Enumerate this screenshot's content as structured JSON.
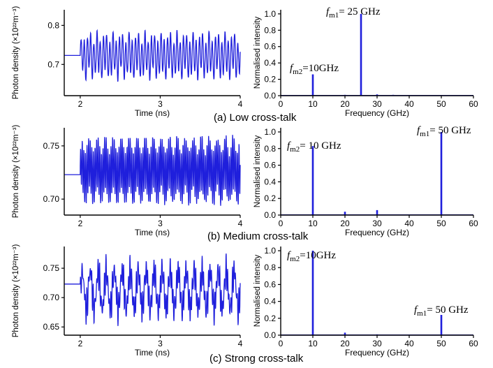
{
  "colors": {
    "trace": "#1f1fdc",
    "axis": "#000000"
  },
  "captions": [
    "(a) Low cross-talk",
    "(b) Medium cross-talk",
    "(c) Strong cross-talk"
  ],
  "chart_data": [
    {
      "type": "line",
      "panel": "a-time",
      "xlabel": "Time (ns)",
      "ylabel": "Photon density (×10²²m⁻³)",
      "xlim": [
        1.8,
        4.0
      ],
      "ylim": [
        0.62,
        0.84
      ],
      "xticks": [
        2,
        3,
        4
      ],
      "xtick_labels": [
        "2",
        "3",
        "4"
      ],
      "yticks": [
        0.7,
        0.8
      ],
      "ytick_labels": [
        "0.7",
        "0.8"
      ],
      "series": [
        {
          "baseline": 0.723,
          "start_time": 2.0,
          "end_time": 4.0,
          "min": 0.655,
          "max": 0.79,
          "tones_GHz": [
            25,
            10
          ]
        }
      ]
    },
    {
      "type": "bar",
      "panel": "a-spectrum",
      "xlabel": "Frequency (GHz)",
      "ylabel": "Normalised intensity",
      "xlim": [
        0,
        60
      ],
      "ylim": [
        0,
        1.05
      ],
      "xticks": [
        0,
        10,
        20,
        30,
        40,
        50,
        60
      ],
      "xtick_labels": [
        "0",
        "10",
        "20",
        "30",
        "40",
        "50",
        "60"
      ],
      "yticks": [
        0,
        0.2,
        0.4,
        0.6,
        0.8,
        1.0
      ],
      "ytick_labels": [
        "0.0",
        "0.2",
        "0.4",
        "0.6",
        "0.8",
        "1.0"
      ],
      "peaks": [
        {
          "x": 10,
          "y": 0.26
        },
        {
          "x": 20,
          "y": 0.01
        },
        {
          "x": 25,
          "y": 1.0
        },
        {
          "x": 30,
          "y": 0.015
        },
        {
          "x": 35,
          "y": 0.01
        },
        {
          "x": 50,
          "y": 0.005
        }
      ],
      "annotations": [
        {
          "f": "f",
          "sub": "m2",
          "rest": "=10GHz"
        },
        {
          "f": "f",
          "sub": "m1",
          "rest": "= 25 GHz"
        }
      ]
    },
    {
      "type": "line",
      "panel": "b-time",
      "xlabel": "Time (ns)",
      "ylabel": "Photon density (×10²²m⁻³)",
      "xlim": [
        1.8,
        4.0
      ],
      "ylim": [
        0.685,
        0.767
      ],
      "xticks": [
        2,
        3,
        4
      ],
      "xtick_labels": [
        "2",
        "3",
        "4"
      ],
      "yticks": [
        0.7,
        0.75
      ],
      "ytick_labels": [
        "0.70",
        "0.75"
      ],
      "series": [
        {
          "baseline": 0.723,
          "start_time": 2.0,
          "end_time": 4.0,
          "min": 0.692,
          "max": 0.762,
          "tones_GHz": [
            50,
            10
          ]
        }
      ]
    },
    {
      "type": "bar",
      "panel": "b-spectrum",
      "xlabel": "Frequency (GHz)",
      "ylabel": "Normalised intensity",
      "xlim": [
        0,
        60
      ],
      "ylim": [
        0,
        1.05
      ],
      "xticks": [
        0,
        10,
        20,
        30,
        40,
        50,
        60
      ],
      "xtick_labels": [
        "0",
        "10",
        "20",
        "30",
        "40",
        "50",
        "60"
      ],
      "yticks": [
        0,
        0.2,
        0.4,
        0.6,
        0.8,
        1.0
      ],
      "ytick_labels": [
        "0.0",
        "0.2",
        "0.4",
        "0.6",
        "0.8",
        "1.0"
      ],
      "peaks": [
        {
          "x": 10,
          "y": 0.83
        },
        {
          "x": 20,
          "y": 0.04
        },
        {
          "x": 30,
          "y": 0.06
        },
        {
          "x": 50,
          "y": 1.0
        }
      ],
      "annotations": [
        {
          "f": "f",
          "sub": "m2",
          "rest": "= 10 GHz"
        },
        {
          "f": "f",
          "sub": "m1",
          "rest": "= 50 GHz"
        }
      ]
    },
    {
      "type": "line",
      "panel": "c-time",
      "xlabel": "Time (ns)",
      "ylabel": "Photon density (×10²²m⁻³)",
      "xlim": [
        1.8,
        4.0
      ],
      "ylim": [
        0.636,
        0.787
      ],
      "xticks": [
        2,
        3,
        4
      ],
      "xtick_labels": [
        "2",
        "3",
        "4"
      ],
      "yticks": [
        0.65,
        0.7,
        0.75
      ],
      "ytick_labels": [
        "0.65",
        "0.70",
        "0.75"
      ],
      "series": [
        {
          "baseline": 0.723,
          "start_time": 2.0,
          "end_time": 4.0,
          "min": 0.648,
          "max": 0.778,
          "tones_GHz": [
            10,
            50
          ]
        }
      ]
    },
    {
      "type": "bar",
      "panel": "c-spectrum",
      "xlabel": "Frequency (GHz)",
      "ylabel": "Normalised intensity",
      "xlim": [
        0,
        60
      ],
      "ylim": [
        0,
        1.05
      ],
      "xticks": [
        0,
        10,
        20,
        30,
        40,
        50,
        60
      ],
      "xtick_labels": [
        "0",
        "10",
        "20",
        "30",
        "40",
        "50",
        "60"
      ],
      "yticks": [
        0,
        0.2,
        0.4,
        0.6,
        0.8,
        1.0
      ],
      "ytick_labels": [
        "0.0",
        "0.2",
        "0.4",
        "0.6",
        "0.8",
        "1.0"
      ],
      "peaks": [
        {
          "x": 10,
          "y": 1.0
        },
        {
          "x": 20,
          "y": 0.03
        },
        {
          "x": 30,
          "y": 0.01
        },
        {
          "x": 50,
          "y": 0.24
        }
      ],
      "annotations": [
        {
          "f": "f",
          "sub": "m2",
          "rest": "=10GHz"
        },
        {
          "f": "f",
          "sub": "m1",
          "rest": "= 50 GHz"
        }
      ]
    }
  ]
}
